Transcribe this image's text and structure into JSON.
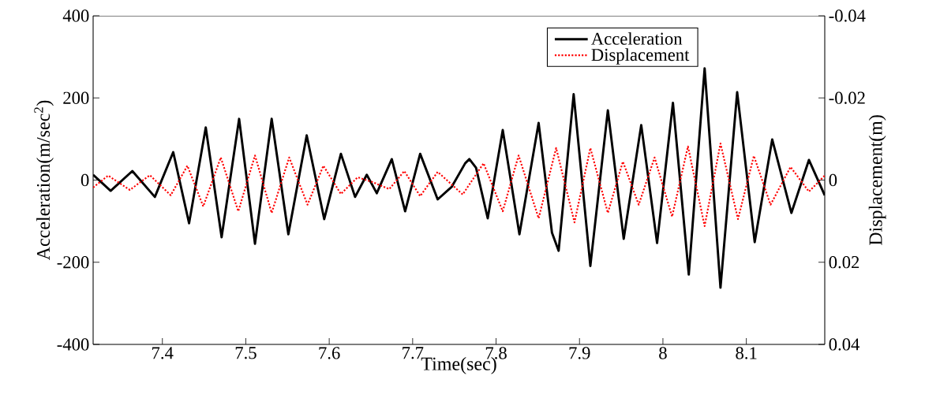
{
  "chart_data": {
    "type": "line",
    "xlabel": "Time(sec)",
    "ylabel": "Acceleration(m/sec$^{2}$)",
    "y2label": "Displacement(m)",
    "xlim": [
      7.317,
      8.194
    ],
    "xticks": [
      7.4,
      7.5,
      7.6,
      7.7,
      7.8,
      7.9,
      8,
      8.1
    ],
    "ylim": [
      -400,
      400
    ],
    "yticks": [
      -400,
      -200,
      0,
      200,
      400
    ],
    "y2lim": [
      0.04,
      -0.04
    ],
    "y2ticks": [
      -0.04,
      -0.02,
      0,
      0.02,
      0.04
    ],
    "grid": false,
    "legend": "top right",
    "marker": "none",
    "series": [
      {
        "name": "Acceleration",
        "color": "#000000",
        "line_style": "solid",
        "x": [
          7.317,
          7.338,
          7.364,
          7.391,
          7.413,
          7.432,
          7.452,
          7.471,
          7.492,
          7.511,
          7.531,
          7.551,
          7.573,
          7.594,
          7.614,
          7.631,
          7.645,
          7.657,
          7.675,
          7.691,
          7.709,
          7.73,
          7.747,
          7.763,
          7.768,
          7.776,
          7.79,
          7.808,
          7.828,
          7.851,
          7.867,
          7.875,
          7.893,
          7.913,
          7.934,
          7.953,
          7.974,
          7.993,
          8.012,
          8.031,
          8.05,
          8.069,
          8.089,
          8.11,
          8.131,
          8.154,
          8.175,
          8.194
        ],
        "values": [
          13,
          -26,
          22,
          -41,
          68,
          -105,
          128,
          -139,
          149,
          -155,
          149,
          -132,
          109,
          -95,
          64,
          -41,
          13,
          -32,
          51,
          -76,
          64,
          -47,
          -16,
          41,
          51,
          30,
          -93,
          122,
          -132,
          139,
          -128,
          -172,
          209,
          -209,
          170,
          -143,
          134,
          -153,
          188,
          -230,
          272,
          -262,
          214,
          -151,
          99,
          -80,
          49,
          -37
        ]
      },
      {
        "name": "Displacement",
        "color": "#ff0000",
        "line_style": "dotted",
        "axis": "y2",
        "x": [
          7.317,
          7.335,
          7.361,
          7.385,
          7.41,
          7.43,
          7.449,
          7.47,
          7.491,
          7.511,
          7.531,
          7.552,
          7.574,
          7.593,
          7.614,
          7.634,
          7.652,
          7.672,
          7.69,
          7.709,
          7.73,
          7.76,
          7.785,
          7.808,
          7.827,
          7.851,
          7.872,
          7.894,
          7.913,
          7.934,
          7.952,
          7.971,
          7.99,
          8.011,
          8.03,
          8.05,
          8.069,
          8.09,
          8.109,
          8.129,
          8.153,
          8.175,
          8.194
        ],
        "values": [
          0.0018,
          -0.0011,
          0.0024,
          -0.0012,
          0.0037,
          -0.0035,
          0.0064,
          -0.0055,
          0.0076,
          -0.006,
          0.008,
          -0.0055,
          0.006,
          -0.0035,
          0.0034,
          -0.0007,
          0.0005,
          0.0022,
          -0.0022,
          0.0039,
          -0.002,
          0.0035,
          -0.0041,
          0.0076,
          -0.006,
          0.0093,
          -0.0078,
          0.0103,
          -0.0078,
          0.008,
          -0.0045,
          0.006,
          -0.0055,
          0.0089,
          -0.0082,
          0.0112,
          -0.0089,
          0.0095,
          -0.0059,
          0.006,
          -0.0032,
          0.0028,
          -0.0011
        ]
      }
    ]
  }
}
